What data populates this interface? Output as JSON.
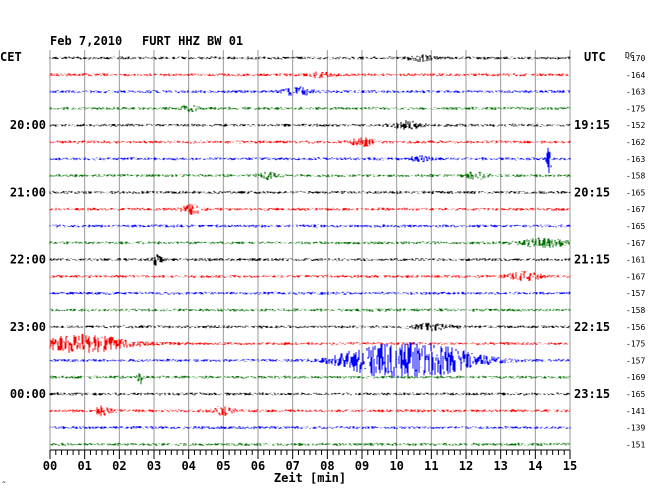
{
  "header": {
    "date": "Feb 7,2010",
    "station": "FURT HHZ BW 01",
    "left_zone": "CET",
    "right_zone": "UTC",
    "dc_label": "DC"
  },
  "chart_data": {
    "type": "line",
    "title": "Feb 7,2010   FURT HHZ BW 01",
    "xlabel": "Zeit [min]",
    "ylabel": "",
    "x_ticks": [
      "00",
      "01",
      "02",
      "03",
      "04",
      "05",
      "06",
      "07",
      "08",
      "09",
      "10",
      "11",
      "12",
      "13",
      "14",
      "15"
    ],
    "xlim": [
      0,
      15
    ],
    "left_time_labels": [
      {
        "row": 4,
        "text": "20:00"
      },
      {
        "row": 8,
        "text": "21:00"
      },
      {
        "row": 12,
        "text": "22:00"
      },
      {
        "row": 16,
        "text": "23:00"
      },
      {
        "row": 20,
        "text": "00:00"
      }
    ],
    "right_time_labels": [
      {
        "row": 4,
        "text": "19:15"
      },
      {
        "row": 8,
        "text": "20:15"
      },
      {
        "row": 12,
        "text": "21:15"
      },
      {
        "row": 16,
        "text": "22:15"
      },
      {
        "row": 20,
        "text": "23:15"
      }
    ],
    "dc_offsets": [
      -170,
      -164,
      -163,
      -175,
      -152,
      -162,
      -163,
      -158,
      -165,
      -167,
      -165,
      -167,
      -161,
      -167,
      -157,
      -158,
      -156,
      -175,
      -157,
      -169,
      -165,
      -141,
      -139,
      -151
    ],
    "trace_colors": [
      "#000000",
      "#ff0000",
      "#0000ff",
      "#007000"
    ],
    "events": [
      {
        "row": 0,
        "x": 10.7,
        "width": 0.5,
        "amp": 3
      },
      {
        "row": 1,
        "x": 7.8,
        "width": 0.4,
        "amp": 3
      },
      {
        "row": 2,
        "x": 7.1,
        "width": 0.6,
        "amp": 4
      },
      {
        "row": 3,
        "x": 4.0,
        "width": 0.3,
        "amp": 4
      },
      {
        "row": 4,
        "x": 10.3,
        "width": 0.6,
        "amp": 4
      },
      {
        "row": 5,
        "x": 9.0,
        "width": 0.5,
        "amp": 4
      },
      {
        "row": 6,
        "x": 14.4,
        "width": 0.1,
        "amp": 14
      },
      {
        "row": 6,
        "x": 10.7,
        "width": 0.4,
        "amp": 3
      },
      {
        "row": 7,
        "x": 6.3,
        "width": 0.4,
        "amp": 3
      },
      {
        "row": 7,
        "x": 12.3,
        "width": 0.5,
        "amp": 3
      },
      {
        "row": 9,
        "x": 4.1,
        "width": 0.4,
        "amp": 5
      },
      {
        "row": 11,
        "x": 14.2,
        "width": 1.0,
        "amp": 4
      },
      {
        "row": 12,
        "x": 3.1,
        "width": 0.2,
        "amp": 6
      },
      {
        "row": 13,
        "x": 13.7,
        "width": 0.7,
        "amp": 4
      },
      {
        "row": 16,
        "x": 11.0,
        "width": 0.8,
        "amp": 3
      },
      {
        "row": 17,
        "x": 1.0,
        "width": 1.8,
        "amp": 9
      },
      {
        "row": 18,
        "x": 9.2,
        "width": 1.4,
        "amp": 9
      },
      {
        "row": 18,
        "x": 10.8,
        "width": 2.2,
        "amp": 16
      },
      {
        "row": 19,
        "x": 2.6,
        "width": 0.1,
        "amp": 8
      },
      {
        "row": 21,
        "x": 1.5,
        "width": 0.4,
        "amp": 4
      },
      {
        "row": 21,
        "x": 5.0,
        "width": 0.5,
        "amp": 4
      }
    ]
  }
}
